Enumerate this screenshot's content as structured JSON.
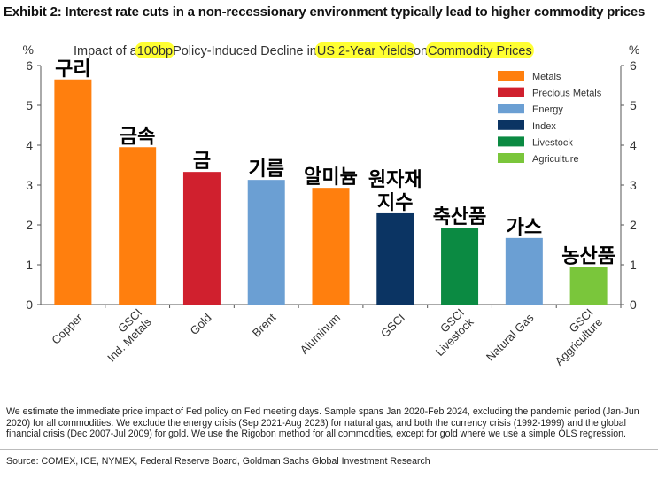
{
  "exhibit_title": "Exhibit 2: Interest rate cuts in a non-recessionary environment typically lead to higher commodity prices",
  "footnote": "We estimate the immediate price impact of Fed policy on Fed meeting days. Sample spans Jan 2020-Feb 2024, excluding the pandemic period (Jan-Jun 2020) for all commodities. We exclude the energy crisis (Sep 2021-Aug 2023) for natural gas, and both the currency crisis (1992-1999) and the global financial crisis (Dec 2007-Jul 2009) for gold. We use the Rigobon method for all commodities, except for gold where we use a simple OLS regression.",
  "source": "Source: COMEX, ICE, NYMEX, Federal Reserve Board, Goldman Sachs Global Investment Research",
  "highlight_color": "#ffff33",
  "chart_data": {
    "type": "bar",
    "title_parts": [
      {
        "text": "Impact of a ",
        "highlight": false
      },
      {
        "text": "100bp",
        "highlight": true
      },
      {
        "text": " Policy-Induced Decline in ",
        "highlight": false
      },
      {
        "text": "US 2-Year Yields",
        "highlight": true
      },
      {
        "text": " on ",
        "highlight": false
      },
      {
        "text": "Commodity Prices",
        "highlight": true
      }
    ],
    "y_unit_left": "%",
    "y_unit_right": "%",
    "ylim": [
      0,
      6
    ],
    "yticks": [
      0,
      1,
      2,
      3,
      4,
      5,
      6
    ],
    "grid": false,
    "legend_position": "top-right",
    "legend": [
      {
        "label": "Metals",
        "color": "#ff7f0e"
      },
      {
        "label": "Precious Metals",
        "color": "#d0202e"
      },
      {
        "label": "Energy",
        "color": "#6b9fd3"
      },
      {
        "label": "Index",
        "color": "#0b3463"
      },
      {
        "label": "Livestock",
        "color": "#0b8a42"
      },
      {
        "label": "Agriculture",
        "color": "#7ac63b"
      }
    ],
    "bars": [
      {
        "category_lines": [
          "Copper"
        ],
        "value": 5.65,
        "group": "Metals",
        "korean": [
          "구리"
        ]
      },
      {
        "category_lines": [
          "GSCI",
          "Ind. Metals"
        ],
        "value": 3.95,
        "group": "Metals",
        "korean": [
          "금속"
        ]
      },
      {
        "category_lines": [
          "Gold"
        ],
        "value": 3.33,
        "group": "Precious Metals",
        "korean": [
          "금"
        ]
      },
      {
        "category_lines": [
          "Brent"
        ],
        "value": 3.13,
        "group": "Energy",
        "korean": [
          "기름"
        ]
      },
      {
        "category_lines": [
          "Aluminum"
        ],
        "value": 2.93,
        "group": "Metals",
        "korean": [
          "알미늄"
        ]
      },
      {
        "category_lines": [
          "GSCI"
        ],
        "value": 2.29,
        "group": "Index",
        "korean": [
          "원자재",
          "지수"
        ]
      },
      {
        "category_lines": [
          "GSCI",
          "Livestock"
        ],
        "value": 1.93,
        "group": "Livestock",
        "korean": [
          "축산품"
        ]
      },
      {
        "category_lines": [
          "Natural Gas"
        ],
        "value": 1.67,
        "group": "Energy",
        "korean": [
          "가스"
        ]
      },
      {
        "category_lines": [
          "GSCI",
          "Aggriculture"
        ],
        "value": 0.95,
        "group": "Agriculture",
        "korean": [
          "농산품"
        ]
      }
    ]
  }
}
